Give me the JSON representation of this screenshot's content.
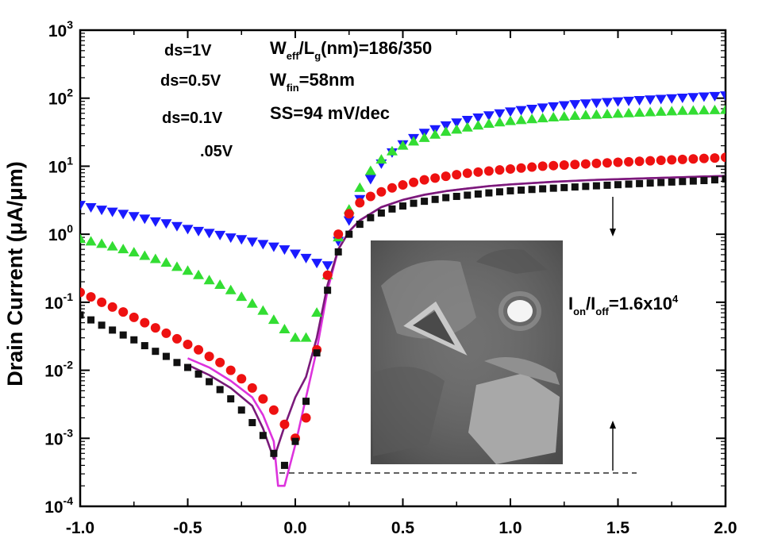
{
  "chart_data": {
    "type": "scatter",
    "title": "",
    "xlabel": "",
    "ylabel": "Drain Current (μA/μm)",
    "xlim": [
      -1.0,
      2.0
    ],
    "ylim_log10": [
      -4,
      3
    ],
    "yscale": "log",
    "x_ticks": [
      "-1.0",
      "-0.5",
      "0.0",
      "0.5",
      "1.0",
      "1.5",
      "2.0"
    ],
    "y_ticks": [
      {
        "base": "10",
        "exp": "3"
      },
      {
        "base": "10",
        "exp": "2"
      },
      {
        "base": "10",
        "exp": "1"
      },
      {
        "base": "10",
        "exp": "0"
      },
      {
        "base": "10",
        "exp": "-1"
      },
      {
        "base": "10",
        "exp": "-2"
      },
      {
        "base": "10",
        "exp": "-3"
      },
      {
        "base": "10",
        "exp": "-4"
      }
    ],
    "legend": [
      {
        "label": "ds=1V",
        "color": "#1a1aff",
        "marker": "triangle-down"
      },
      {
        "label": "ds=0.5V",
        "color": "#33dd33",
        "marker": "triangle-up"
      },
      {
        "label": "ds=0.1V",
        "color": "#ee1111",
        "marker": "circle"
      },
      {
        "label": ".05V",
        "color": "#111111",
        "marker": "square"
      }
    ],
    "annotations": {
      "weff_lg": {
        "main": "W",
        "sub1": "eff",
        "mid": "/L",
        "sub2": "g",
        "tail": "(nm)=186/350"
      },
      "wfin": {
        "main": "W",
        "sub": "fin",
        "tail": "=58nm"
      },
      "ss": "SS=94 mV/dec",
      "on_off": {
        "i1": "I",
        "s1": "on",
        "sl": "/I",
        "s2": "off",
        "val": "=1.6x10",
        "exp": "4"
      }
    },
    "series": [
      {
        "name": "ds=1V",
        "color": "#1a1aff",
        "marker": "triangle-down",
        "x": [
          -1.0,
          -0.95,
          -0.9,
          -0.85,
          -0.8,
          -0.75,
          -0.7,
          -0.65,
          -0.6,
          -0.55,
          -0.5,
          -0.45,
          -0.4,
          -0.35,
          -0.3,
          -0.25,
          -0.2,
          -0.15,
          -0.1,
          -0.05,
          0.0,
          0.05,
          0.1,
          0.15,
          0.2,
          0.25,
          0.3,
          0.35,
          0.4,
          0.45,
          0.5,
          0.55,
          0.6,
          0.65,
          0.7,
          0.75,
          0.8,
          0.85,
          0.9,
          0.95,
          1.0,
          1.05,
          1.1,
          1.15,
          1.2,
          1.25,
          1.3,
          1.35,
          1.4,
          1.45,
          1.5,
          1.55,
          1.6,
          1.65,
          1.7,
          1.75,
          1.8,
          1.85,
          1.9,
          1.95,
          2.0
        ],
        "y": [
          2.7,
          2.5,
          2.3,
          2.15,
          2.0,
          1.85,
          1.7,
          1.55,
          1.45,
          1.32,
          1.2,
          1.12,
          1.05,
          0.98,
          0.9,
          0.85,
          0.78,
          0.72,
          0.66,
          0.6,
          0.52,
          0.45,
          0.38,
          0.35,
          0.8,
          1.6,
          3.3,
          6.5,
          11,
          16,
          21,
          26,
          31,
          35,
          40,
          44,
          48,
          52,
          56,
          60,
          64,
          67,
          70,
          73,
          76,
          79,
          82,
          84,
          86,
          88,
          90,
          92,
          94,
          96,
          98,
          100,
          102,
          104,
          106,
          108,
          110
        ]
      },
      {
        "name": "ds=0.5V",
        "color": "#33dd33",
        "marker": "triangle-up",
        "x": [
          -1.0,
          -0.95,
          -0.9,
          -0.85,
          -0.8,
          -0.75,
          -0.7,
          -0.65,
          -0.6,
          -0.55,
          -0.5,
          -0.45,
          -0.4,
          -0.35,
          -0.3,
          -0.25,
          -0.2,
          -0.15,
          -0.1,
          -0.05,
          0.0,
          0.05,
          0.1,
          0.15,
          0.2,
          0.25,
          0.3,
          0.35,
          0.4,
          0.45,
          0.5,
          0.55,
          0.6,
          0.65,
          0.7,
          0.75,
          0.8,
          0.85,
          0.9,
          0.95,
          1.0,
          1.05,
          1.1,
          1.15,
          1.2,
          1.25,
          1.3,
          1.35,
          1.4,
          1.45,
          1.5,
          1.55,
          1.6,
          1.65,
          1.7,
          1.75,
          1.8,
          1.85,
          1.9,
          1.95,
          2.0
        ],
        "y": [
          0.85,
          0.78,
          0.72,
          0.66,
          0.6,
          0.54,
          0.48,
          0.43,
          0.38,
          0.33,
          0.29,
          0.25,
          0.21,
          0.18,
          0.15,
          0.12,
          0.095,
          0.075,
          0.055,
          0.04,
          0.03,
          0.03,
          0.07,
          0.25,
          0.9,
          2.3,
          4.8,
          8.5,
          12.5,
          16.5,
          20,
          23,
          26,
          29,
          32,
          34.5,
          37,
          39.5,
          42,
          44,
          46,
          47.5,
          49,
          50.5,
          52,
          53.5,
          55,
          56,
          57,
          58,
          59,
          60,
          61,
          62,
          63,
          64,
          65,
          65.5,
          66,
          66.5,
          67
        ]
      },
      {
        "name": "ds=0.1V",
        "color": "#ee1111",
        "marker": "circle",
        "x": [
          -1.0,
          -0.95,
          -0.9,
          -0.85,
          -0.8,
          -0.75,
          -0.7,
          -0.65,
          -0.6,
          -0.55,
          -0.5,
          -0.45,
          -0.4,
          -0.35,
          -0.3,
          -0.25,
          -0.2,
          -0.15,
          -0.1,
          -0.05,
          0.0,
          0.05,
          0.1,
          0.15,
          0.2,
          0.25,
          0.3,
          0.35,
          0.4,
          0.45,
          0.5,
          0.55,
          0.6,
          0.65,
          0.7,
          0.75,
          0.8,
          0.85,
          0.9,
          0.95,
          1.0,
          1.05,
          1.1,
          1.15,
          1.2,
          1.25,
          1.3,
          1.35,
          1.4,
          1.45,
          1.5,
          1.55,
          1.6,
          1.65,
          1.7,
          1.75,
          1.8,
          1.85,
          1.9,
          1.95,
          2.0
        ],
        "y": [
          0.14,
          0.12,
          0.1,
          0.085,
          0.072,
          0.06,
          0.05,
          0.042,
          0.035,
          0.029,
          0.024,
          0.02,
          0.016,
          0.013,
          0.01,
          0.0075,
          0.0055,
          0.0038,
          0.0026,
          0.0016,
          0.001,
          0.002,
          0.02,
          0.25,
          1.0,
          2.0,
          2.9,
          3.6,
          4.2,
          4.8,
          5.3,
          5.8,
          6.3,
          6.7,
          7.1,
          7.5,
          7.9,
          8.2,
          8.5,
          8.8,
          9.1,
          9.4,
          9.7,
          10,
          10.2,
          10.4,
          10.6,
          10.8,
          11,
          11.2,
          11.4,
          11.6,
          11.8,
          12,
          12.2,
          12.4,
          12.6,
          12.8,
          13,
          13.2,
          13.5
        ]
      },
      {
        "name": ".05V",
        "color": "#111111",
        "marker": "square",
        "x": [
          -1.0,
          -0.95,
          -0.9,
          -0.85,
          -0.8,
          -0.75,
          -0.7,
          -0.65,
          -0.6,
          -0.55,
          -0.5,
          -0.45,
          -0.4,
          -0.35,
          -0.3,
          -0.25,
          -0.2,
          -0.15,
          -0.1,
          -0.05,
          0.0,
          0.05,
          0.1,
          0.15,
          0.2,
          0.25,
          0.3,
          0.35,
          0.4,
          0.45,
          0.5,
          0.55,
          0.6,
          0.65,
          0.7,
          0.75,
          0.8,
          0.85,
          0.9,
          0.95,
          1.0,
          1.05,
          1.1,
          1.15,
          1.2,
          1.25,
          1.3,
          1.35,
          1.4,
          1.45,
          1.5,
          1.55,
          1.6,
          1.65,
          1.7,
          1.75,
          1.8,
          1.85,
          1.9,
          1.95,
          2.0
        ],
        "y": [
          0.065,
          0.055,
          0.046,
          0.039,
          0.033,
          0.028,
          0.023,
          0.019,
          0.016,
          0.013,
          0.011,
          0.0088,
          0.0068,
          0.0052,
          0.0038,
          0.0026,
          0.0017,
          0.0011,
          0.0006,
          0.0004,
          0.0009,
          0.0035,
          0.018,
          0.15,
          0.55,
          1.0,
          1.4,
          1.75,
          2.05,
          2.35,
          2.6,
          2.85,
          3.05,
          3.25,
          3.45,
          3.6,
          3.75,
          3.9,
          4.05,
          4.2,
          4.35,
          4.45,
          4.55,
          4.65,
          4.75,
          4.85,
          4.95,
          5.05,
          5.15,
          5.25,
          5.35,
          5.45,
          5.55,
          5.65,
          5.75,
          5.85,
          5.95,
          6.05,
          6.15,
          6.3,
          6.5
        ]
      }
    ],
    "lines": [
      {
        "name": "fit-magenta",
        "color": "#dd33dd",
        "x": [
          -0.5,
          -0.4,
          -0.3,
          -0.2,
          -0.15,
          -0.1,
          -0.08,
          -0.05,
          0.0,
          0.05,
          0.1,
          0.15,
          0.2,
          0.25,
          0.3,
          0.4,
          0.5,
          0.6,
          0.7,
          0.8,
          0.9,
          1.0,
          1.2,
          1.4,
          1.6,
          1.8,
          2.0
        ],
        "y": [
          0.015,
          0.011,
          0.007,
          0.004,
          0.0022,
          0.0009,
          0.0002,
          0.0002,
          0.0008,
          0.004,
          0.02,
          0.15,
          0.6,
          1.1,
          1.6,
          2.5,
          3.2,
          3.8,
          4.3,
          4.7,
          5.1,
          5.4,
          5.9,
          6.3,
          6.6,
          6.9,
          7.2
        ]
      },
      {
        "name": "fit-purple",
        "color": "#7a1a7a",
        "x": [
          -0.5,
          -0.4,
          -0.3,
          -0.2,
          -0.15,
          -0.1,
          -0.05,
          0.0,
          0.05,
          0.1,
          0.15,
          0.2,
          0.25,
          0.3,
          0.4,
          0.5,
          0.6,
          0.7,
          0.8,
          0.9,
          1.0,
          1.2,
          1.4,
          1.6,
          1.8,
          2.0
        ],
        "y": [
          0.012,
          0.0085,
          0.0055,
          0.003,
          0.0014,
          0.0005,
          0.0015,
          0.004,
          0.008,
          0.03,
          0.18,
          0.6,
          1.1,
          1.6,
          2.5,
          3.2,
          3.8,
          4.3,
          4.7,
          5.1,
          5.4,
          5.9,
          6.3,
          6.6,
          6.9,
          7.2
        ]
      }
    ]
  }
}
